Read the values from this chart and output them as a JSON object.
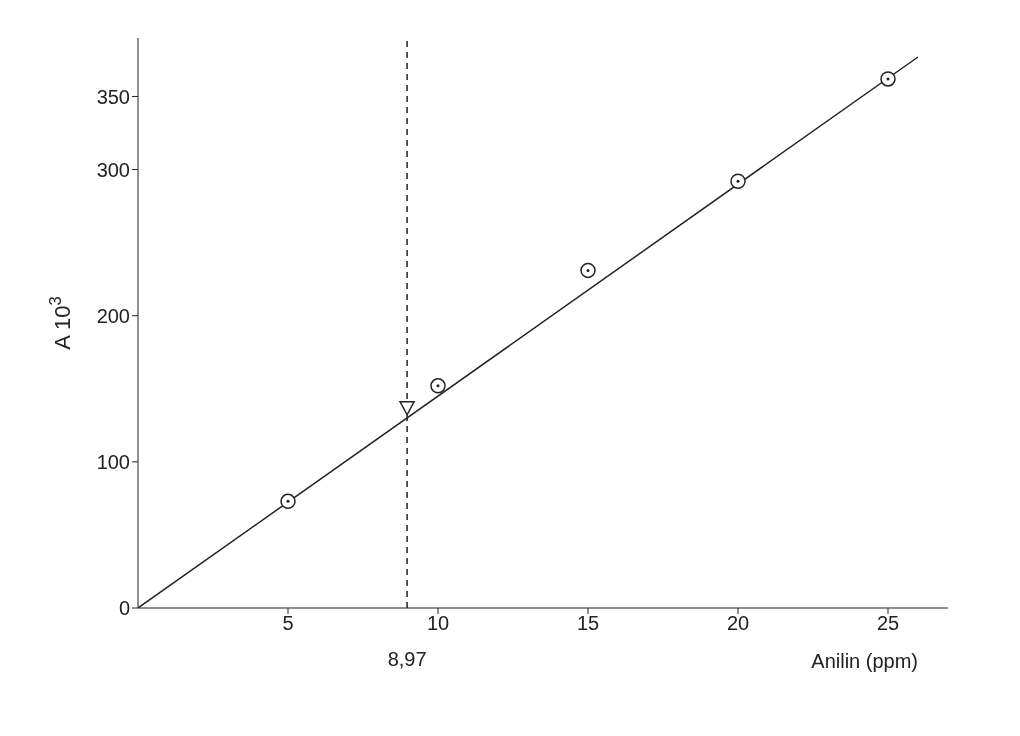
{
  "chart_data": {
    "type": "scatter",
    "xlabel": "Anilin (ppm)",
    "ylabel": "A 10$^{3}$",
    "xlim": [
      0,
      27
    ],
    "ylim": [
      0,
      390
    ],
    "xticks": [
      5,
      10,
      15,
      20,
      25
    ],
    "yticks": [
      0,
      100,
      200,
      300,
      350
    ],
    "series": [
      {
        "marker": "circle",
        "color": "#222222",
        "x": [
          5,
          10,
          15,
          20,
          25
        ],
        "values": [
          73,
          152,
          231,
          292,
          362
        ]
      },
      {
        "marker": "triangle",
        "color": "#222222",
        "x": [
          8.97
        ],
        "values": [
          137
        ]
      },
      {
        "type": "line",
        "marker": "none",
        "line_style": "solid",
        "color": "#222222",
        "x": [
          0,
          26
        ],
        "values": [
          0,
          377
        ]
      }
    ],
    "ref_lines": [
      {
        "axis": "x",
        "value": 8.97,
        "label": "8,97",
        "line_style": "dashed",
        "color": "#222222"
      }
    ]
  }
}
